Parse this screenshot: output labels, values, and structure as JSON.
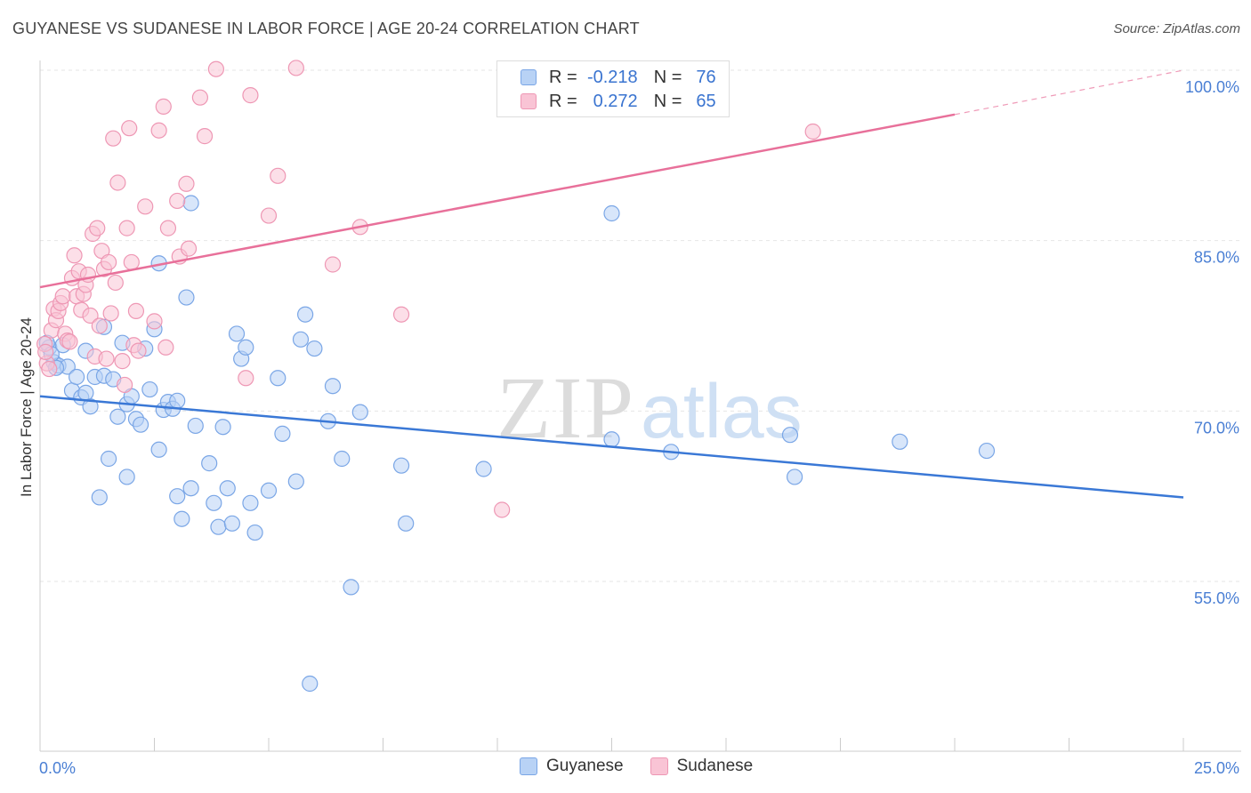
{
  "header": {
    "title": "GUYANESE VS SUDANESE IN LABOR FORCE | AGE 20-24 CORRELATION CHART",
    "source": "Source: ZipAtlas.com"
  },
  "watermark": {
    "zip": "ZIP",
    "atlas": "atlas"
  },
  "legend": {
    "rows": [
      {
        "r_label": "R =",
        "r_value": "-0.218",
        "n_label": "N =",
        "n_value": "76",
        "fill": "#b8d2f5",
        "stroke": "#7aa6e6"
      },
      {
        "r_label": "R =",
        "r_value": "0.272",
        "n_label": "N =",
        "n_value": "65",
        "fill": "#f9c4d5",
        "stroke": "#ee97b4"
      }
    ],
    "series": [
      {
        "label": "Guyanese",
        "fill": "#b8d2f5",
        "stroke": "#7aa6e6"
      },
      {
        "label": "Sudanese",
        "fill": "#f9c4d5",
        "stroke": "#ee97b4"
      }
    ]
  },
  "chart_data": {
    "type": "scatter",
    "title": "GUYANESE VS SUDANESE IN LABOR FORCE | AGE 20-24 CORRELATION CHART",
    "xlabel": "",
    "ylabel": "In Labor Force | Age 20-24",
    "xlim": [
      0,
      25
    ],
    "ylim": [
      40,
      100
    ],
    "x_tick_labels": [
      "0.0%",
      "25.0%"
    ],
    "y_ticks": [
      55,
      70,
      85,
      100
    ],
    "y_tick_labels": [
      "55.0%",
      "70.0%",
      "85.0%",
      "100.0%"
    ],
    "grid": true,
    "colors": {
      "guyanese": "#3a78d6",
      "sudanese": "#e8709a"
    },
    "series": [
      {
        "name": "Guyanese",
        "trend": {
          "x": [
            0,
            25
          ],
          "y": [
            71.3,
            62.4
          ]
        },
        "points": [
          [
            0.2,
            75.6
          ],
          [
            0.3,
            74.3
          ],
          [
            0.4,
            74.0
          ],
          [
            0.5,
            75.8
          ],
          [
            0.6,
            73.9
          ],
          [
            0.7,
            71.8
          ],
          [
            0.8,
            73.0
          ],
          [
            0.9,
            71.2
          ],
          [
            1.0,
            71.6
          ],
          [
            1.0,
            75.3
          ],
          [
            1.1,
            70.4
          ],
          [
            1.2,
            73.0
          ],
          [
            1.3,
            62.4
          ],
          [
            1.4,
            77.4
          ],
          [
            1.4,
            73.1
          ],
          [
            1.5,
            65.8
          ],
          [
            1.6,
            72.8
          ],
          [
            1.7,
            69.5
          ],
          [
            1.8,
            76.0
          ],
          [
            1.9,
            64.2
          ],
          [
            1.9,
            70.6
          ],
          [
            2.0,
            71.3
          ],
          [
            2.1,
            69.3
          ],
          [
            2.2,
            68.8
          ],
          [
            2.3,
            75.5
          ],
          [
            2.4,
            71.9
          ],
          [
            2.5,
            77.2
          ],
          [
            2.6,
            83.0
          ],
          [
            2.6,
            66.6
          ],
          [
            2.7,
            70.1
          ],
          [
            2.8,
            70.8
          ],
          [
            2.9,
            70.2
          ],
          [
            3.0,
            62.5
          ],
          [
            3.0,
            70.9
          ],
          [
            3.1,
            60.5
          ],
          [
            3.2,
            80.0
          ],
          [
            3.3,
            63.2
          ],
          [
            3.3,
            88.3
          ],
          [
            3.4,
            68.7
          ],
          [
            3.7,
            65.4
          ],
          [
            3.8,
            61.9
          ],
          [
            3.9,
            59.8
          ],
          [
            4.0,
            68.6
          ],
          [
            4.1,
            63.2
          ],
          [
            4.2,
            60.1
          ],
          [
            4.3,
            76.8
          ],
          [
            4.4,
            74.6
          ],
          [
            4.5,
            75.6
          ],
          [
            4.6,
            61.9
          ],
          [
            4.7,
            59.3
          ],
          [
            5.0,
            63.0
          ],
          [
            5.2,
            72.9
          ],
          [
            5.3,
            68.0
          ],
          [
            5.6,
            63.8
          ],
          [
            5.7,
            76.3
          ],
          [
            5.8,
            78.5
          ],
          [
            5.9,
            46.0
          ],
          [
            6.0,
            75.5
          ],
          [
            6.3,
            69.1
          ],
          [
            6.4,
            72.2
          ],
          [
            6.6,
            65.8
          ],
          [
            6.8,
            54.5
          ],
          [
            7.0,
            69.9
          ],
          [
            7.9,
            65.2
          ],
          [
            8.0,
            60.1
          ],
          [
            9.7,
            64.9
          ],
          [
            12.5,
            87.4
          ],
          [
            12.5,
            67.5
          ],
          [
            13.8,
            66.4
          ],
          [
            16.4,
            67.9
          ],
          [
            16.5,
            64.2
          ],
          [
            18.8,
            67.3
          ],
          [
            20.7,
            66.5
          ],
          [
            0.15,
            76.0
          ],
          [
            0.25,
            75.0
          ],
          [
            0.35,
            73.8
          ]
        ]
      },
      {
        "name": "Sudanese",
        "trend": {
          "x": [
            0,
            20
          ],
          "y": [
            80.9,
            96.1
          ]
        },
        "trend_dashed": {
          "x": [
            20,
            25
          ],
          "y": [
            96.1,
            100.0
          ]
        },
        "points": [
          [
            0.1,
            75.9
          ],
          [
            0.15,
            74.2
          ],
          [
            0.2,
            73.7
          ],
          [
            0.25,
            77.1
          ],
          [
            0.3,
            79.0
          ],
          [
            0.35,
            78.0
          ],
          [
            0.4,
            78.8
          ],
          [
            0.45,
            79.5
          ],
          [
            0.5,
            80.1
          ],
          [
            0.55,
            76.8
          ],
          [
            0.6,
            76.2
          ],
          [
            0.65,
            76.1
          ],
          [
            0.7,
            81.7
          ],
          [
            0.75,
            83.7
          ],
          [
            0.8,
            80.1
          ],
          [
            0.85,
            82.3
          ],
          [
            0.9,
            78.9
          ],
          [
            0.95,
            80.3
          ],
          [
            1.0,
            81.1
          ],
          [
            1.05,
            82.0
          ],
          [
            1.1,
            78.4
          ],
          [
            1.15,
            85.6
          ],
          [
            1.2,
            74.8
          ],
          [
            1.25,
            86.1
          ],
          [
            1.3,
            77.5
          ],
          [
            1.35,
            84.1
          ],
          [
            1.4,
            82.5
          ],
          [
            1.45,
            74.6
          ],
          [
            1.5,
            83.1
          ],
          [
            1.55,
            78.6
          ],
          [
            1.6,
            94.0
          ],
          [
            1.65,
            81.3
          ],
          [
            1.7,
            90.1
          ],
          [
            1.8,
            74.4
          ],
          [
            1.85,
            72.3
          ],
          [
            1.9,
            86.1
          ],
          [
            1.95,
            94.9
          ],
          [
            2.0,
            83.1
          ],
          [
            2.05,
            75.8
          ],
          [
            2.1,
            78.8
          ],
          [
            2.15,
            75.3
          ],
          [
            2.3,
            88.0
          ],
          [
            2.5,
            77.9
          ],
          [
            2.6,
            94.7
          ],
          [
            2.7,
            96.8
          ],
          [
            2.75,
            75.6
          ],
          [
            2.8,
            86.1
          ],
          [
            3.0,
            88.5
          ],
          [
            3.05,
            83.6
          ],
          [
            3.2,
            90.0
          ],
          [
            3.25,
            84.3
          ],
          [
            3.5,
            97.6
          ],
          [
            3.6,
            94.2
          ],
          [
            3.85,
            100.1
          ],
          [
            4.5,
            72.9
          ],
          [
            4.6,
            97.8
          ],
          [
            5.0,
            87.2
          ],
          [
            5.2,
            90.7
          ],
          [
            5.6,
            100.2
          ],
          [
            6.4,
            82.9
          ],
          [
            7.0,
            86.2
          ],
          [
            7.9,
            78.5
          ],
          [
            10.1,
            61.3
          ],
          [
            16.9,
            94.6
          ],
          [
            0.12,
            75.2
          ]
        ]
      }
    ]
  }
}
